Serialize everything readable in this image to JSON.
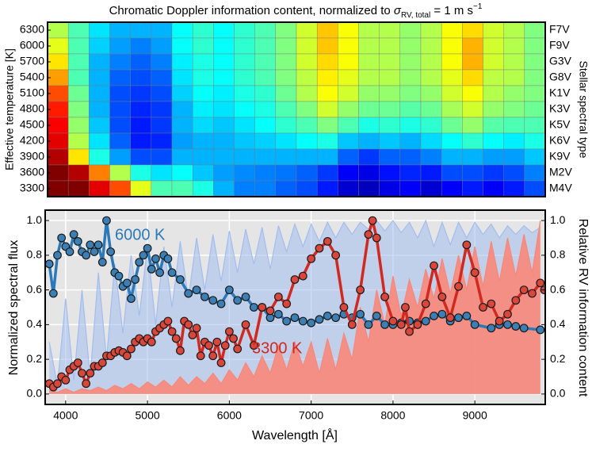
{
  "chart_data": [
    {
      "type": "heatmap",
      "title": [
        "Chromatic Doppler information content, normalized to ",
        "σ",
        "RV, total",
        " = 1 m s",
        "−1"
      ],
      "y_label": "Effective temperature [K]",
      "y2_label": "Stellar spectral type",
      "row_labels": [
        6300,
        6000,
        5700,
        5400,
        5100,
        4800,
        4500,
        4200,
        3900,
        3600,
        3300
      ],
      "row_types": [
        "F7V",
        "F9V",
        "G3V",
        "G8V",
        "K1V",
        "K3V",
        "K5V",
        "K6V",
        "K9V",
        "M2V",
        "M4V"
      ],
      "colormap": "jet",
      "values": [
        [
          0.55,
          0.45,
          0.35,
          0.3,
          0.3,
          0.3,
          0.38,
          0.42,
          0.38,
          0.42,
          0.45,
          0.5,
          0.58,
          0.68,
          0.62,
          0.55,
          0.55,
          0.52,
          0.55,
          0.62,
          0.66,
          0.58,
          0.55,
          0.5
        ],
        [
          0.6,
          0.45,
          0.33,
          0.28,
          0.25,
          0.28,
          0.38,
          0.42,
          0.38,
          0.42,
          0.45,
          0.5,
          0.58,
          0.68,
          0.62,
          0.55,
          0.55,
          0.52,
          0.55,
          0.62,
          0.7,
          0.58,
          0.55,
          0.5
        ],
        [
          0.65,
          0.45,
          0.3,
          0.25,
          0.22,
          0.25,
          0.36,
          0.4,
          0.38,
          0.42,
          0.45,
          0.5,
          0.58,
          0.66,
          0.62,
          0.55,
          0.55,
          0.52,
          0.55,
          0.62,
          0.7,
          0.58,
          0.55,
          0.5
        ],
        [
          0.72,
          0.45,
          0.3,
          0.22,
          0.2,
          0.22,
          0.35,
          0.4,
          0.38,
          0.42,
          0.45,
          0.5,
          0.56,
          0.64,
          0.6,
          0.55,
          0.55,
          0.52,
          0.55,
          0.6,
          0.66,
          0.56,
          0.55,
          0.5
        ],
        [
          0.8,
          0.48,
          0.3,
          0.2,
          0.18,
          0.2,
          0.33,
          0.38,
          0.36,
          0.4,
          0.42,
          0.48,
          0.55,
          0.62,
          0.58,
          0.52,
          0.52,
          0.5,
          0.52,
          0.58,
          0.62,
          0.55,
          0.52,
          0.5
        ],
        [
          0.85,
          0.5,
          0.3,
          0.2,
          0.16,
          0.18,
          0.3,
          0.36,
          0.35,
          0.38,
          0.4,
          0.45,
          0.5,
          0.58,
          0.52,
          0.48,
          0.48,
          0.46,
          0.48,
          0.54,
          0.58,
          0.52,
          0.5,
          0.48
        ],
        [
          0.88,
          0.52,
          0.32,
          0.2,
          0.15,
          0.18,
          0.3,
          0.34,
          0.32,
          0.35,
          0.38,
          0.42,
          0.45,
          0.5,
          0.45,
          0.4,
          0.42,
          0.4,
          0.42,
          0.48,
          0.52,
          0.46,
          0.45,
          0.45
        ],
        [
          0.9,
          0.55,
          0.35,
          0.22,
          0.15,
          0.16,
          0.28,
          0.3,
          0.3,
          0.32,
          0.33,
          0.35,
          0.38,
          0.4,
          0.32,
          0.3,
          0.32,
          0.3,
          0.34,
          0.38,
          0.42,
          0.38,
          0.36,
          0.4
        ],
        [
          0.95,
          0.65,
          0.4,
          0.28,
          0.2,
          0.2,
          0.3,
          0.3,
          0.3,
          0.3,
          0.3,
          0.3,
          0.3,
          0.3,
          0.22,
          0.18,
          0.22,
          0.22,
          0.25,
          0.3,
          0.3,
          0.28,
          0.28,
          0.32
        ],
        [
          1.0,
          0.95,
          0.75,
          0.55,
          0.4,
          0.35,
          0.38,
          0.32,
          0.28,
          0.26,
          0.25,
          0.24,
          0.22,
          0.18,
          0.12,
          0.1,
          0.14,
          0.16,
          0.15,
          0.2,
          0.2,
          0.18,
          0.2,
          0.25
        ],
        [
          1.0,
          1.0,
          0.9,
          0.8,
          0.6,
          0.45,
          0.45,
          0.4,
          0.3,
          0.25,
          0.25,
          0.22,
          0.2,
          0.15,
          0.08,
          0.06,
          0.1,
          0.12,
          0.08,
          0.12,
          0.15,
          0.12,
          0.15,
          0.2
        ]
      ]
    },
    {
      "type": "line",
      "xlabel": "Wavelength [Å]",
      "ylabel": "Normalized spectral flux",
      "y2label": "Relative RV information content",
      "xlim": [
        3750,
        9860
      ],
      "xticks": [
        4000,
        5000,
        6000,
        7000,
        8000,
        9000
      ],
      "ylim": [
        -0.06,
        1.06
      ],
      "yticks": [
        {
          "value": 0,
          "label": "0.0"
        },
        {
          "value": 0.2,
          "label": "0.2"
        },
        {
          "value": 0.4,
          "label": "0.4"
        },
        {
          "value": 0.6,
          "label": "0.6"
        },
        {
          "value": 0.8,
          "label": "0.8"
        },
        {
          "value": 1,
          "label": "1.0"
        }
      ],
      "y2lim": [
        -0.06,
        1.06
      ],
      "y2ticks": [
        {
          "value": 0,
          "label": "0.0"
        },
        {
          "value": 0.2,
          "label": "0.2"
        },
        {
          "value": 0.4,
          "label": "0.4"
        },
        {
          "value": 0.6,
          "label": "0.6"
        },
        {
          "value": 0.8,
          "label": "0.8"
        },
        {
          "value": 1,
          "label": "1.0"
        }
      ],
      "grid": true,
      "spectra": [
        {
          "color": "#a3bdef",
          "x": [
            3800,
            3900,
            4000,
            4100,
            4200,
            4300,
            4400,
            4500,
            4600,
            4700,
            4800,
            4900,
            5000,
            5100,
            5200,
            5300,
            5400,
            5500,
            5600,
            5700,
            5800,
            5900,
            6000,
            6100,
            6200,
            6300,
            6400,
            6500,
            6600,
            6700,
            6800,
            6900,
            7000,
            7100,
            7200,
            7300,
            7400,
            7500,
            7600,
            7700,
            7800,
            7900,
            8000,
            8100,
            8200,
            8300,
            8400,
            8500,
            8600,
            8700,
            8800,
            8900,
            9000,
            9100,
            9200,
            9300,
            9400,
            9500,
            9600,
            9700,
            9800
          ],
          "values": [
            0.3,
            0.05,
            0.55,
            0.08,
            0.6,
            0.1,
            0.7,
            0.2,
            0.75,
            0.35,
            0.8,
            0.45,
            0.85,
            0.4,
            0.85,
            0.5,
            0.88,
            0.55,
            0.9,
            0.6,
            0.92,
            0.65,
            0.94,
            0.7,
            0.95,
            0.75,
            0.96,
            0.72,
            0.97,
            0.82,
            0.98,
            0.85,
            0.98,
            0.88,
            0.99,
            0.9,
            0.99,
            0.92,
            0.99,
            0.95,
            1.0,
            0.94,
            1.0,
            0.93,
            0.99,
            0.9,
            1.0,
            0.85,
            0.99,
            0.86,
            0.99,
            0.9,
            0.99,
            0.92,
            0.98,
            0.9,
            0.97,
            0.92,
            0.97,
            0.93,
            0.96
          ]
        },
        {
          "color": "#f8877a",
          "x": [
            3800,
            3900,
            4000,
            4100,
            4200,
            4300,
            4400,
            4500,
            4600,
            4700,
            4800,
            4900,
            5000,
            5100,
            5200,
            5300,
            5400,
            5500,
            5600,
            5700,
            5800,
            5900,
            6000,
            6100,
            6200,
            6300,
            6400,
            6500,
            6600,
            6700,
            6800,
            6900,
            7000,
            7100,
            7200,
            7300,
            7400,
            7500,
            7600,
            7700,
            7800,
            7900,
            8000,
            8100,
            8200,
            8300,
            8400,
            8500,
            8600,
            8700,
            8800,
            8900,
            9000,
            9100,
            9200,
            9300,
            9400,
            9500,
            9600,
            9700,
            9800
          ],
          "values": [
            0.02,
            0.01,
            0.03,
            0.01,
            0.03,
            0.02,
            0.04,
            0.02,
            0.05,
            0.03,
            0.06,
            0.03,
            0.07,
            0.04,
            0.08,
            0.04,
            0.1,
            0.05,
            0.1,
            0.06,
            0.12,
            0.06,
            0.14,
            0.08,
            0.18,
            0.1,
            0.22,
            0.12,
            0.28,
            0.14,
            0.3,
            0.16,
            0.3,
            0.12,
            0.32,
            0.14,
            0.35,
            0.2,
            0.5,
            0.3,
            0.6,
            0.4,
            0.68,
            0.45,
            0.66,
            0.5,
            0.72,
            0.55,
            0.78,
            0.58,
            0.8,
            0.6,
            0.85,
            0.62,
            0.88,
            0.65,
            0.9,
            0.68,
            0.92,
            0.7,
            1.0
          ]
        }
      ],
      "series": [
        {
          "name": "6000 K",
          "color": "#2b79b8",
          "marker_color": "#3b7fb5",
          "axis": "y2",
          "x": [
            3800,
            3850,
            3900,
            3950,
            4000,
            4050,
            4100,
            4150,
            4200,
            4250,
            4300,
            4350,
            4400,
            4450,
            4500,
            4550,
            4600,
            4650,
            4700,
            4750,
            4800,
            4850,
            4900,
            4950,
            5000,
            5050,
            5100,
            5150,
            5200,
            5250,
            5300,
            5400,
            5500,
            5600,
            5700,
            5800,
            5900,
            6000,
            6100,
            6200,
            6300,
            6400,
            6500,
            6600,
            6700,
            6800,
            6900,
            7000,
            7100,
            7200,
            7300,
            7400,
            7500,
            7600,
            7700,
            7800,
            7900,
            8000,
            8100,
            8200,
            8300,
            8400,
            8500,
            8600,
            8700,
            8800,
            8900,
            9000,
            9200,
            9300,
            9400,
            9500,
            9600,
            9800
          ],
          "values": [
            0.75,
            0.58,
            0.8,
            0.9,
            0.85,
            0.82,
            0.92,
            0.88,
            0.82,
            0.8,
            0.86,
            0.82,
            0.86,
            0.76,
            1.0,
            0.82,
            0.7,
            0.68,
            0.62,
            0.64,
            0.55,
            0.66,
            0.76,
            0.8,
            0.84,
            0.72,
            0.78,
            0.7,
            0.8,
            0.78,
            0.7,
            0.66,
            0.58,
            0.6,
            0.56,
            0.54,
            0.52,
            0.6,
            0.54,
            0.56,
            0.5,
            0.5,
            0.44,
            0.46,
            0.42,
            0.44,
            0.42,
            0.41,
            0.43,
            0.45,
            0.44,
            0.46,
            0.44,
            0.46,
            0.4,
            0.45,
            0.4,
            0.4,
            0.41,
            0.42,
            0.41,
            0.42,
            0.45,
            0.46,
            0.42,
            0.44,
            0.45,
            0.4,
            0.38,
            0.4,
            0.4,
            0.39,
            0.38,
            0.37
          ]
        },
        {
          "name": "3300 K",
          "color": "#d1281f",
          "marker_color": "#d9463a",
          "axis": "y2",
          "x": [
            3800,
            3850,
            3900,
            3950,
            4000,
            4050,
            4100,
            4150,
            4200,
            4250,
            4300,
            4350,
            4400,
            4450,
            4500,
            4550,
            4600,
            4650,
            4700,
            4750,
            4800,
            4850,
            4900,
            4950,
            5000,
            5050,
            5100,
            5150,
            5200,
            5250,
            5300,
            5350,
            5400,
            5450,
            5500,
            5550,
            5600,
            5650,
            5700,
            5750,
            5800,
            5850,
            5900,
            5950,
            6000,
            6050,
            6100,
            6200,
            6300,
            6400,
            6500,
            6600,
            6700,
            6800,
            6900,
            7000,
            7100,
            7200,
            7300,
            7400,
            7500,
            7600,
            7700,
            7750,
            7800,
            7900,
            8000,
            8100,
            8150,
            8200,
            8300,
            8400,
            8500,
            8600,
            8700,
            8800,
            8900,
            9000,
            9100,
            9200,
            9300,
            9400,
            9500,
            9600,
            9700,
            9800,
            9850
          ],
          "values": [
            0.06,
            0.04,
            0.06,
            0.1,
            0.08,
            0.14,
            0.16,
            0.18,
            0.12,
            0.06,
            0.12,
            0.16,
            0.16,
            0.18,
            0.22,
            0.22,
            0.24,
            0.25,
            0.24,
            0.22,
            0.26,
            0.3,
            0.32,
            0.3,
            0.32,
            0.3,
            0.36,
            0.38,
            0.4,
            0.42,
            0.36,
            0.32,
            0.25,
            0.42,
            0.4,
            0.34,
            0.38,
            0.22,
            0.3,
            0.28,
            0.22,
            0.3,
            0.18,
            0.28,
            0.36,
            0.32,
            0.26,
            0.4,
            0.28,
            0.5,
            0.48,
            0.56,
            0.52,
            0.66,
            0.68,
            0.78,
            0.84,
            0.88,
            0.8,
            0.5,
            0.4,
            0.6,
            0.92,
            1.0,
            0.9,
            0.56,
            0.42,
            0.4,
            0.5,
            0.36,
            0.4,
            0.52,
            0.74,
            0.56,
            0.44,
            0.62,
            0.86,
            0.7,
            0.5,
            0.52,
            0.42,
            0.46,
            0.54,
            0.6,
            0.58,
            0.64,
            0.6
          ]
        }
      ]
    }
  ]
}
